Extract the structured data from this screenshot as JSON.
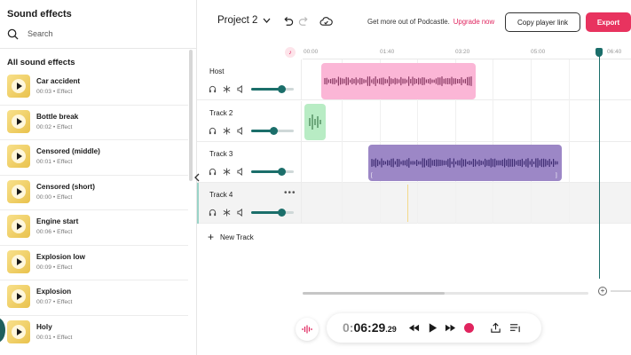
{
  "sidebar": {
    "title": "Sound effects",
    "search_placeholder": "Search",
    "section_title": "All sound effects",
    "items": [
      {
        "name": "Car accident",
        "meta": "00:03 • Effect"
      },
      {
        "name": "Bottle break",
        "meta": "00:02 • Effect"
      },
      {
        "name": "Censored (middle)",
        "meta": "00:01 • Effect"
      },
      {
        "name": "Censored (short)",
        "meta": "00:00 • Effect"
      },
      {
        "name": "Engine start",
        "meta": "00:06 • Effect"
      },
      {
        "name": "Explosion low",
        "meta": "00:09 • Effect"
      },
      {
        "name": "Explosion",
        "meta": "00:07 • Effect"
      },
      {
        "name": "Holy",
        "meta": "00:01 • Effect"
      }
    ]
  },
  "header": {
    "project_name": "Project 2",
    "promo_text": "Get more out of Podcastle.",
    "upgrade_link": "Upgrade now",
    "copy_link_button": "Copy player link",
    "export_button": "Export"
  },
  "timeline": {
    "ruler": [
      "00:00",
      "01:40",
      "03:20",
      "05:00",
      "06:40"
    ],
    "tracks": [
      {
        "name": "Host",
        "volume": 0.7
      },
      {
        "name": "Track 2",
        "volume": 0.5
      },
      {
        "name": "Track 3",
        "volume": 0.7
      },
      {
        "name": "Track 4",
        "volume": 0.7
      }
    ],
    "new_track_label": "New Track"
  },
  "transport": {
    "time_main_dim": "0:",
    "time_main": "06:29",
    "time_fraction": ".29"
  },
  "colors": {
    "accent": "#e8335f",
    "teal": "#1b6e6a",
    "host_clip": "#fbb6d6",
    "track2_clip": "#b8ecc4",
    "track3_clip": "#9c87c6"
  }
}
